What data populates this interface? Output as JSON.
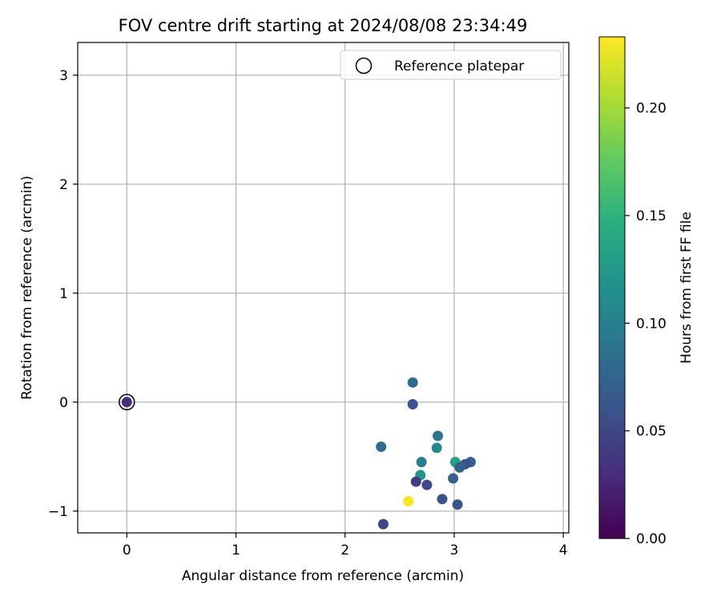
{
  "chart_data": {
    "type": "scatter",
    "title": "FOV centre drift starting at 2024/08/08 23:34:49",
    "xlabel": "Angular distance from reference (arcmin)",
    "ylabel": "Rotation from reference (arcmin)",
    "xlim": [
      -0.45,
      4.05
    ],
    "ylim": [
      -1.2,
      3.3
    ],
    "xticks": [
      0,
      1,
      2,
      3,
      4
    ],
    "xtick_labels": [
      "0",
      "1",
      "2",
      "3",
      "4"
    ],
    "yticks": [
      -1,
      0,
      1,
      2,
      3
    ],
    "ytick_labels": [
      "−1",
      "0",
      "1",
      "2",
      "3"
    ],
    "grid": true,
    "legend": {
      "placement": "top-right",
      "entries": [
        "Reference platepar"
      ]
    },
    "reference_point": {
      "x": 0,
      "y": 0,
      "label": "Reference platepar"
    },
    "colorbar": {
      "label": "Hours from first FF file",
      "colormap": "viridis",
      "range": [
        0,
        0.233
      ],
      "ticks": [
        0,
        0.05,
        0.1,
        0.15,
        0.2
      ],
      "tick_labels": [
        "0.00",
        "0.05",
        "0.10",
        "0.15",
        "0.20"
      ]
    },
    "points": [
      {
        "x": 0.0,
        "y": 0.0,
        "hours": 0.03
      },
      {
        "x": 2.62,
        "y": 0.18,
        "hours": 0.08
      },
      {
        "x": 2.62,
        "y": -0.02,
        "hours": 0.06
      },
      {
        "x": 2.33,
        "y": -0.41,
        "hours": 0.08
      },
      {
        "x": 2.85,
        "y": -0.31,
        "hours": 0.09
      },
      {
        "x": 2.84,
        "y": -0.42,
        "hours": 0.11
      },
      {
        "x": 2.7,
        "y": -0.55,
        "hours": 0.1
      },
      {
        "x": 3.01,
        "y": -0.55,
        "hours": 0.13
      },
      {
        "x": 3.15,
        "y": -0.55,
        "hours": 0.07
      },
      {
        "x": 3.1,
        "y": -0.57,
        "hours": 0.06
      },
      {
        "x": 3.05,
        "y": -0.6,
        "hours": 0.07
      },
      {
        "x": 2.69,
        "y": -0.67,
        "hours": 0.12
      },
      {
        "x": 2.99,
        "y": -0.7,
        "hours": 0.07
      },
      {
        "x": 2.65,
        "y": -0.73,
        "hours": 0.04
      },
      {
        "x": 2.75,
        "y": -0.76,
        "hours": 0.05
      },
      {
        "x": 2.89,
        "y": -0.89,
        "hours": 0.06
      },
      {
        "x": 3.03,
        "y": -0.94,
        "hours": 0.06
      },
      {
        "x": 2.58,
        "y": -0.91,
        "hours": 0.23
      },
      {
        "x": 2.35,
        "y": -1.12,
        "hours": 0.05
      }
    ]
  }
}
